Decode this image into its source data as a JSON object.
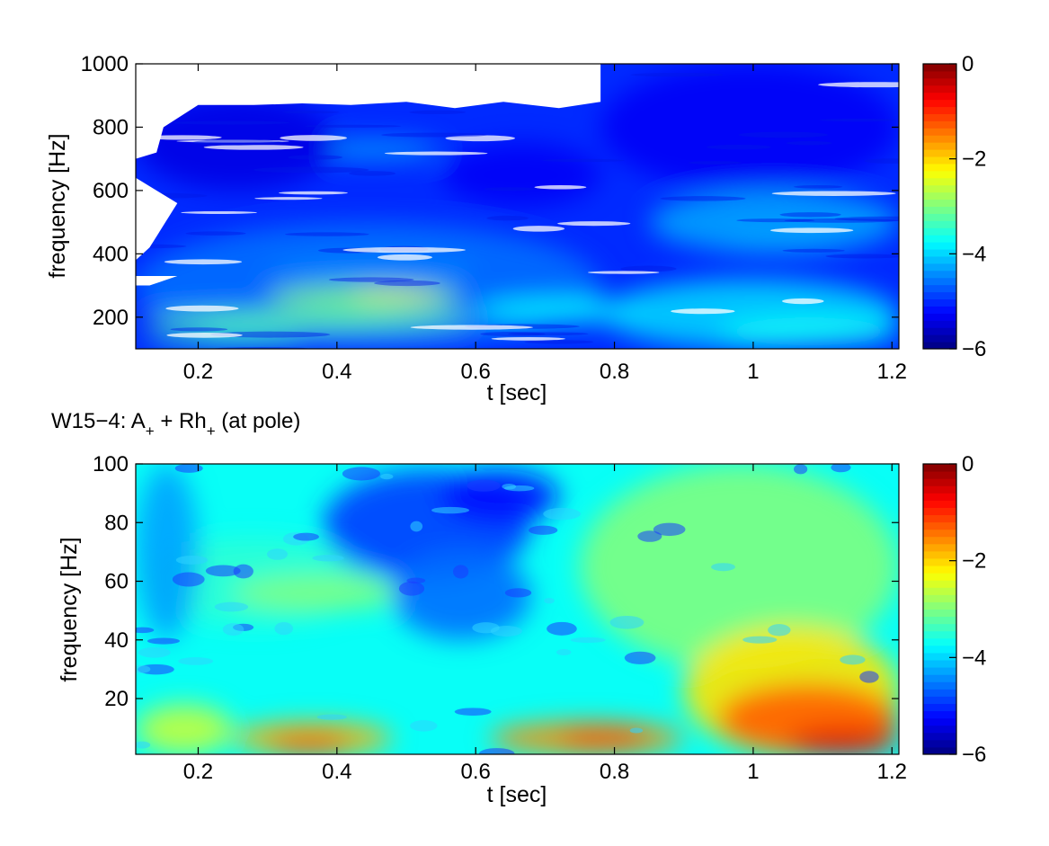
{
  "figure": {
    "middle_title": {
      "prefix": "W15−4:  A",
      "sub1": "+",
      "mid": " + Rh",
      "sub2": "+",
      "suffix": " (at pole)"
    }
  },
  "colors": {
    "colormap": "jet",
    "background": "#ffffff",
    "axes": "#000000"
  },
  "chart_data": [
    {
      "type": "heatmap",
      "title": "",
      "xlabel": "t [sec]",
      "ylabel": "frequency [Hz]",
      "xlim": [
        0.11,
        1.21
      ],
      "ylim": [
        100,
        1000
      ],
      "xticks": [
        0.2,
        0.4,
        0.6,
        0.8,
        1.0,
        1.2
      ],
      "xtick_labels": [
        "0.2",
        "0.4",
        "0.6",
        "0.8",
        "1",
        "1.2"
      ],
      "yticks": [
        200,
        400,
        600,
        800,
        1000
      ],
      "ytick_labels": [
        "200",
        "400",
        "600",
        "800",
        "1000"
      ],
      "colorbar": {
        "range": [
          -6,
          0
        ],
        "ticks": [
          -6,
          -4,
          -2,
          0
        ],
        "tick_labels": [
          "−6",
          "−4",
          "−2",
          "0"
        ]
      },
      "blobs": [
        [
          0.11,
          1.21,
          100,
          1000,
          -5.0
        ],
        [
          0.11,
          0.78,
          100,
          500,
          -4.6
        ],
        [
          0.3,
          0.58,
          230,
          300,
          -3.0
        ],
        [
          0.42,
          0.55,
          255,
          280,
          -2.2
        ],
        [
          0.12,
          0.6,
          160,
          220,
          -3.2
        ],
        [
          0.12,
          0.35,
          110,
          150,
          -3.5
        ],
        [
          0.6,
          0.85,
          180,
          260,
          -3.8
        ],
        [
          0.78,
          1.21,
          100,
          320,
          -4.0
        ],
        [
          0.95,
          1.21,
          110,
          200,
          -3.7
        ],
        [
          0.95,
          1.15,
          420,
          460,
          -3.6
        ],
        [
          0.85,
          1.21,
          400,
          600,
          -4.3
        ],
        [
          0.35,
          0.55,
          700,
          760,
          -4.3
        ],
        [
          0.3,
          0.6,
          330,
          380,
          -4.4
        ],
        [
          0.78,
          1.21,
          600,
          1000,
          -5.3
        ],
        [
          0.11,
          0.4,
          600,
          900,
          -5.4
        ],
        [
          0.55,
          0.78,
          550,
          750,
          -5.3
        ]
      ],
      "mask_polygon": [
        [
          0.11,
          1000
        ],
        [
          0.78,
          1000
        ],
        [
          0.78,
          880
        ],
        [
          0.72,
          860
        ],
        [
          0.64,
          880
        ],
        [
          0.57,
          860
        ],
        [
          0.5,
          880
        ],
        [
          0.42,
          870
        ],
        [
          0.35,
          875
        ],
        [
          0.28,
          870
        ],
        [
          0.2,
          870
        ],
        [
          0.15,
          800
        ],
        [
          0.14,
          720
        ],
        [
          0.11,
          700
        ]
      ],
      "mask_polygon2": [
        [
          0.11,
          640
        ],
        [
          0.17,
          560
        ],
        [
          0.13,
          420
        ],
        [
          0.11,
          380
        ]
      ],
      "mask_polygon3": [
        [
          0.11,
          330
        ],
        [
          0.17,
          330
        ],
        [
          0.13,
          300
        ],
        [
          0.11,
          300
        ]
      ]
    },
    {
      "type": "heatmap",
      "title": "",
      "xlabel": "t [sec]",
      "ylabel": "frequency [Hz]",
      "xlim": [
        0.11,
        1.21
      ],
      "ylim": [
        1,
        100
      ],
      "xticks": [
        0.2,
        0.4,
        0.6,
        0.8,
        1.0,
        1.2
      ],
      "xtick_labels": [
        "0.2",
        "0.4",
        "0.6",
        "0.8",
        "1",
        "1.2"
      ],
      "yticks": [
        20,
        40,
        60,
        80,
        100
      ],
      "ytick_labels": [
        "20",
        "40",
        "60",
        "80",
        "100"
      ],
      "colorbar": {
        "range": [
          -6,
          0
        ],
        "ticks": [
          -6,
          -4,
          -2,
          0
        ],
        "tick_labels": [
          "−6",
          "−4",
          "−2",
          "0"
        ]
      },
      "blobs": [
        [
          0.11,
          1.21,
          1,
          100,
          -3.7
        ],
        [
          0.11,
          0.45,
          45,
          75,
          -3.5
        ],
        [
          0.25,
          0.5,
          50,
          62,
          -3.0
        ],
        [
          0.11,
          0.2,
          40,
          100,
          -4.3
        ],
        [
          0.38,
          0.68,
          60,
          98,
          -4.9
        ],
        [
          0.48,
          0.68,
          40,
          70,
          -4.6
        ],
        [
          0.55,
          0.72,
          80,
          98,
          -5.2
        ],
        [
          0.75,
          1.21,
          30,
          100,
          -3.0
        ],
        [
          0.9,
          1.21,
          1,
          45,
          -2.1
        ],
        [
          0.95,
          1.21,
          1,
          25,
          -1.3
        ],
        [
          1.05,
          1.21,
          1,
          10,
          -0.6
        ],
        [
          0.25,
          0.48,
          1,
          12,
          -1.8
        ],
        [
          0.3,
          0.42,
          1,
          8,
          -1.3
        ],
        [
          0.62,
          0.9,
          1,
          12,
          -1.6
        ],
        [
          0.72,
          0.85,
          3,
          10,
          -1.2
        ],
        [
          0.11,
          0.25,
          1,
          18,
          -2.6
        ]
      ]
    }
  ]
}
